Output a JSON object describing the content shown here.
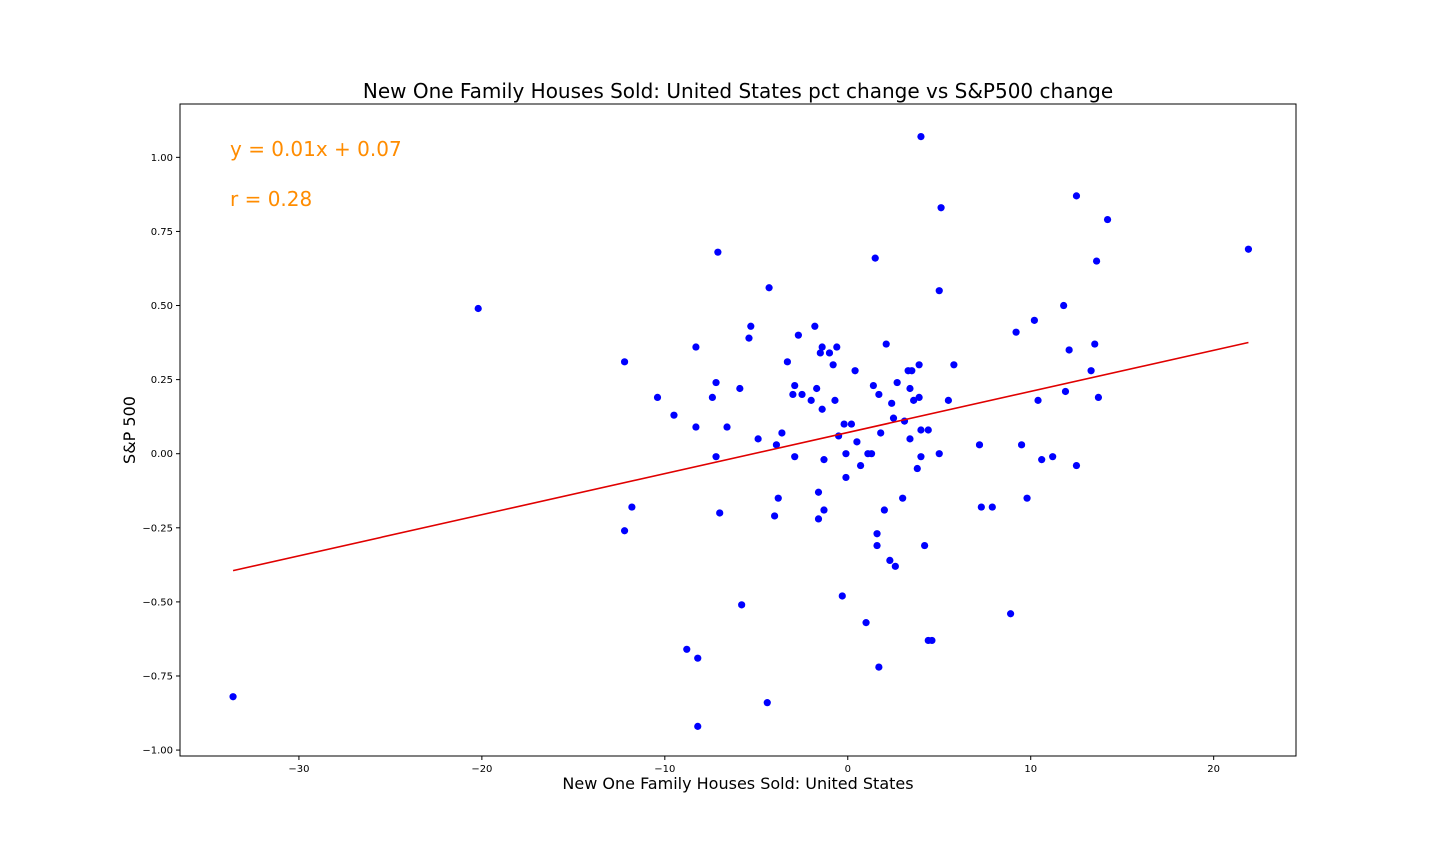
{
  "chart_data": {
    "type": "scatter",
    "title": "New One Family Houses Sold: United States pct change vs S&P500 change",
    "xlabel": "New One Family Houses Sold: United States",
    "ylabel": "S&P 500",
    "xlim": [
      -36.5,
      24.5
    ],
    "ylim": [
      -1.02,
      1.18
    ],
    "xticks": [
      -30,
      -20,
      -10,
      0,
      10,
      20
    ],
    "xtick_labels": [
      "−30",
      "−20",
      "−10",
      "0",
      "10",
      "20"
    ],
    "yticks": [
      -1.0,
      -0.75,
      -0.5,
      -0.25,
      0.0,
      0.25,
      0.5,
      0.75,
      1.0
    ],
    "ytick_labels": [
      "−1.00",
      "−0.75",
      "−0.50",
      "−0.25",
      "0.00",
      "0.25",
      "0.50",
      "0.75",
      "1.00"
    ],
    "grid": false,
    "point_color": "#0000ff",
    "line_color": "#e00000",
    "annotation_color": "#ff8c00",
    "annotations": [
      "y = 0.01x + 0.07",
      "r = 0.28"
    ],
    "regression": {
      "slope": 0.01387,
      "intercept": 0.0716,
      "x_range": [
        -33.6,
        21.9
      ]
    },
    "x": [
      -33.6,
      -20.2,
      -12.2,
      -12.2,
      -11.8,
      -10.4,
      -9.5,
      -8.8,
      -8.3,
      -8.3,
      -8.2,
      -8.2,
      -7.4,
      -7.2,
      -7.2,
      -7.1,
      -7.0,
      -6.6,
      -5.9,
      -5.8,
      -5.4,
      -5.3,
      -4.9,
      -4.4,
      -4.3,
      -4.0,
      -3.9,
      -3.8,
      -3.6,
      -3.3,
      -3.0,
      -2.9,
      -2.9,
      -2.7,
      -2.5,
      -2.0,
      -1.8,
      -1.7,
      -1.6,
      -1.6,
      -1.5,
      -1.4,
      -1.4,
      -1.3,
      -1.3,
      -1.0,
      -0.8,
      -0.7,
      -0.6,
      -0.5,
      -0.3,
      -0.2,
      -0.1,
      -0.1,
      0.2,
      0.4,
      0.5,
      0.7,
      1.0,
      1.1,
      1.3,
      1.4,
      1.5,
      1.6,
      1.6,
      1.7,
      1.7,
      1.8,
      2.0,
      2.1,
      2.3,
      2.4,
      2.5,
      2.6,
      2.7,
      3.0,
      3.1,
      3.3,
      3.4,
      3.4,
      3.5,
      3.6,
      3.8,
      3.9,
      3.9,
      4.0,
      4.0,
      4.0,
      4.2,
      4.4,
      4.4,
      4.6,
      5.0,
      5.0,
      5.1,
      5.5,
      5.8,
      7.2,
      7.3,
      7.9,
      8.9,
      9.2,
      9.5,
      9.8,
      10.2,
      10.4,
      10.6,
      11.2,
      11.8,
      11.9,
      12.1,
      12.5,
      12.5,
      13.3,
      13.5,
      13.6,
      13.7,
      14.2,
      21.9
    ],
    "y": [
      -0.82,
      0.49,
      0.31,
      -0.26,
      -0.18,
      0.19,
      0.13,
      -0.66,
      0.36,
      0.09,
      -0.69,
      -0.92,
      0.19,
      0.24,
      -0.01,
      0.68,
      -0.2,
      0.09,
      0.22,
      -0.51,
      0.39,
      0.43,
      0.05,
      -0.84,
      0.56,
      -0.21,
      0.03,
      -0.15,
      0.07,
      0.31,
      0.2,
      -0.01,
      0.23,
      0.4,
      0.2,
      0.18,
      0.43,
      0.22,
      -0.22,
      -0.13,
      0.34,
      0.36,
      0.15,
      -0.02,
      -0.19,
      0.34,
      0.3,
      0.18,
      0.36,
      0.06,
      -0.48,
      0.1,
      0.0,
      -0.08,
      0.1,
      0.28,
      0.04,
      -0.04,
      -0.57,
      0.0,
      0.0,
      0.23,
      0.66,
      -0.27,
      -0.31,
      0.2,
      -0.72,
      0.07,
      -0.19,
      0.37,
      -0.36,
      0.17,
      0.12,
      -0.38,
      0.24,
      -0.15,
      0.11,
      0.28,
      0.22,
      0.05,
      0.28,
      0.18,
      -0.05,
      0.3,
      0.19,
      1.07,
      0.08,
      -0.01,
      -0.31,
      -0.63,
      0.08,
      -0.63,
      0.0,
      0.55,
      0.83,
      0.18,
      0.3,
      0.03,
      -0.18,
      -0.18,
      -0.54,
      0.41,
      0.03,
      -0.15,
      0.45,
      0.18,
      -0.02,
      -0.01,
      0.5,
      0.21,
      0.35,
      0.87,
      -0.04,
      0.28,
      0.37,
      0.65,
      0.19,
      0.79,
      0.69
    ]
  }
}
